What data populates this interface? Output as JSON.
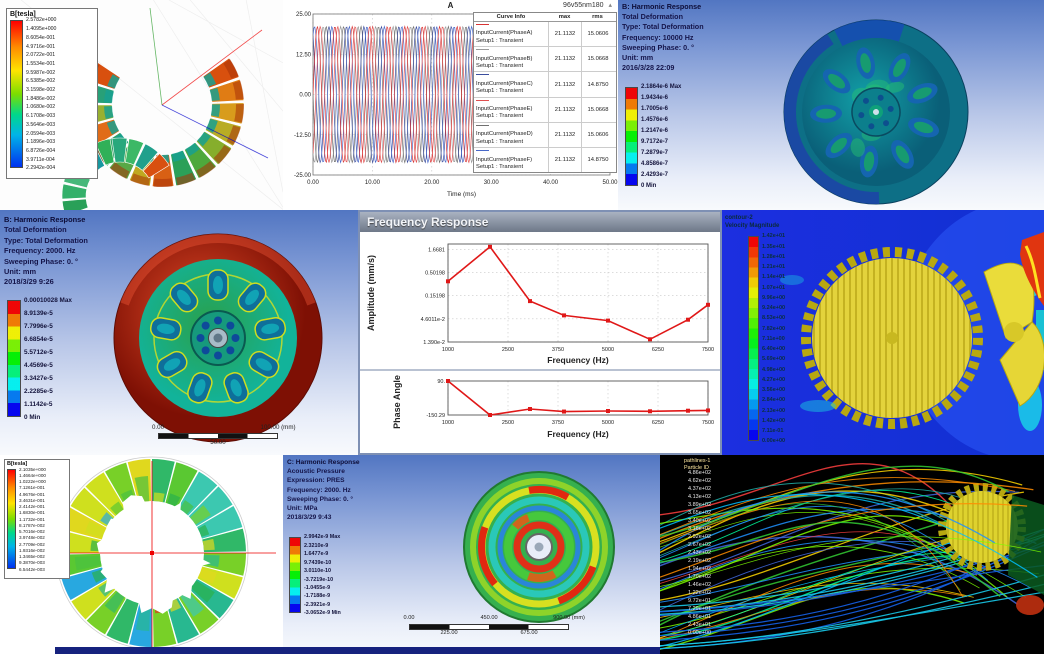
{
  "colors": {
    "plot_line_red": "#e01818",
    "ansys_header_text": "#15154a",
    "panel_titlebar": "#6e7888",
    "cfd_background": "#1c2fd8"
  },
  "tiles": {
    "maxwell_segment": {
      "legend_title": "B[tesla]",
      "legend_values": [
        "2.5782e+000",
        "1.4095e+000",
        "8.6054e-001",
        "4.9716e-001",
        "2.0722e-001",
        "1.5534e-001",
        "9.5987e-002",
        "6.5385e-002",
        "3.1598e-002",
        "1.8486e-002",
        "1.0680e-002",
        "6.1708e-003",
        "3.5646e-003",
        "2.0594e-003",
        "1.1896e-003",
        "6.8726e-004",
        "3.9711e-004",
        "2.2942e-004"
      ]
    },
    "harmonic_wheel_teal": {
      "header": [
        "B: Harmonic Response",
        "Total Deformation",
        "Type: Total Deformation",
        "Frequency: 10000 Hz",
        "Sweeping Phase: 0. °",
        "Unit: mm",
        "2016/3/28 22:09"
      ],
      "legend_values": [
        "2.1864e-6 Max",
        "1.9434e-6",
        "1.7005e-6",
        "1.4576e-6",
        "1.2147e-6",
        "9.7172e-7",
        "7.2879e-7",
        "4.8586e-7",
        "2.4293e-7",
        "0 Min"
      ]
    },
    "harmonic_wheel_red": {
      "header": [
        "B: Harmonic Response",
        "Total Deformation",
        "Type: Total Deformation",
        "Frequency: 2000. Hz",
        "Sweeping Phase: 0. °",
        "Unit: mm",
        "2018/3/29 9:26"
      ],
      "legend_values": [
        "0.00010028 Max",
        "8.9139e-5",
        "7.7996e-5",
        "6.6854e-5",
        "5.5712e-5",
        "4.4569e-5",
        "3.3427e-5",
        "2.2285e-5",
        "1.1142e-5",
        "0 Min"
      ],
      "scale_bar": {
        "left": "0.00",
        "right": "100.00 (mm)",
        "center": "50.00"
      }
    },
    "frequency_response": {
      "panel_title": "Frequency Response"
    },
    "cfd_velocity": {
      "legend_title_lines": [
        "contour-2",
        "Velocity Magnitude"
      ],
      "legend_values": [
        "1.42e+01",
        "1.35e+01",
        "1.28e+01",
        "1.21e+01",
        "1.14e+01",
        "1.07e+01",
        "9.96e+00",
        "9.24e+00",
        "8.53e+00",
        "7.82e+00",
        "7.11e+00",
        "6.40e+00",
        "5.69e+00",
        "4.98e+00",
        "4.27e+00",
        "3.56e+00",
        "2.84e+00",
        "2.13e+00",
        "1.42e+00",
        "7.11e-01",
        "0.00e+00"
      ]
    },
    "maxwell_ring": {
      "legend_title": "B[tesla]",
      "legend_values": [
        "2.1035e+000",
        "1.4664e+000",
        "1.0222e+000",
        "7.1261e-001",
        "4.9676e-001",
        "3.4631e-001",
        "2.4142e-001",
        "1.6830e-001",
        "1.1732e-001",
        "8.1787e-002",
        "5.7016e-002",
        "3.9748e-002",
        "2.7709e-002",
        "1.9316e-002",
        "1.3465e-002",
        "9.3870e-003",
        "6.5442e-003"
      ]
    },
    "acoustic_disk": {
      "header": [
        "C: Harmonic Response",
        "Acoustic Pressure",
        "Expression: PRES",
        "Frequency: 2000. Hz",
        "Sweeping Phase: 0. °",
        "Unit: MPa",
        "2018/3/29 9:43"
      ],
      "legend_values": [
        "2.9942e-9 Max",
        "2.3210e-9",
        "1.6477e-9",
        "9.7439e-10",
        "3.0110e-10",
        "-3.7219e-10",
        "-1.0455e-9",
        "-1.7188e-9",
        "-2.3921e-9",
        "-3.0652e-9 Min"
      ],
      "scale_bar": {
        "r1": [
          "0.00",
          "450.00",
          "900.00 (mm)"
        ],
        "r2": [
          "225.00",
          "675.00"
        ]
      }
    },
    "particle_traces": {
      "legend_title_lines": [
        "pathlines-1",
        "Particle ID"
      ],
      "legend_values": [
        "4.86e+02",
        "4.62e+02",
        "4.37e+02",
        "4.13e+02",
        "3.89e+02",
        "3.65e+02",
        "3.40e+02",
        "3.16e+02",
        "2.92e+02",
        "2.67e+02",
        "2.43e+02",
        "2.19e+02",
        "1.94e+02",
        "1.70e+02",
        "1.46e+02",
        "1.22e+02",
        "9.72e+01",
        "7.29e+01",
        "4.86e+01",
        "2.43e+01",
        "0.00e+00"
      ]
    }
  },
  "chart_data": [
    {
      "id": "input_current",
      "type": "line",
      "title": "A",
      "corner_label": "96v55nm180",
      "xlabel": "Time (ms)",
      "xlim": [
        0,
        50
      ],
      "ylim": [
        -25,
        25
      ],
      "xticks": [
        "0.00",
        "10.00",
        "20.00",
        "30.00",
        "40.00",
        "50.00"
      ],
      "xtick_values": [
        0,
        10,
        20,
        30,
        40,
        50
      ],
      "yticks": [
        "25.00",
        "12.50",
        "0.00",
        "-12.50",
        "-25.00"
      ],
      "ytick_values": [
        25,
        12.5,
        0,
        -12.5,
        -25
      ],
      "amplitude": 21.1132,
      "cycles_shown": 17,
      "legend_header": [
        "Curve Info",
        "max",
        "rms"
      ],
      "series": [
        {
          "name": "InputCurrent(PhaseA)",
          "setup": "Setup1 : Transient",
          "color": "#d83434",
          "phase_deg": 0,
          "max": "21.1132",
          "rms": "15.0606"
        },
        {
          "name": "InputCurrent(PhaseB)",
          "setup": "Setup1 : Transient",
          "color": "#9a9a9a",
          "phase_deg": -120,
          "max": "21.1132",
          "rms": "15.0668"
        },
        {
          "name": "InputCurrent(PhaseC)",
          "setup": "Setup1 : Transient",
          "color": "#3c4e9e",
          "phase_deg": -240,
          "max": "21.1132",
          "rms": "14.8750"
        },
        {
          "name": "InputCurrent(PhaseE)",
          "setup": "Setup1 : Transient",
          "color": "#e05050",
          "phase_deg": -60,
          "max": "21.1132",
          "rms": "15.0668"
        },
        {
          "name": "InputCurrent(PhaseD)",
          "setup": "Setup1 : Transient",
          "color": "#707070",
          "phase_deg": -180,
          "max": "21.1132",
          "rms": "15.0606"
        },
        {
          "name": "InputCurrent(PhaseF)",
          "setup": "Setup1 : Transient",
          "color": "#4868c8",
          "phase_deg": -300,
          "max": "21.1132",
          "rms": "14.8750"
        }
      ]
    },
    {
      "id": "amplitude_response",
      "type": "line",
      "xlabel": "Frequency (Hz)",
      "ylabel": "Amplitude (mm/s)",
      "yscale": "log",
      "x": [
        1000,
        2050,
        3050,
        3900,
        5000,
        6050,
        7000,
        7500
      ],
      "y": [
        0.32,
        1.9,
        0.115,
        0.055,
        0.042,
        0.016,
        0.044,
        0.095
      ],
      "xticks": [
        "1000",
        "2500",
        "3750",
        "5000",
        "6250",
        "7500"
      ],
      "xtick_values": [
        1000,
        2500,
        3750,
        5000,
        6250,
        7500
      ],
      "yticks": [
        "1.6681",
        "0.50198",
        "0.15198",
        "4.6011e-2",
        "1.390e-2"
      ],
      "ytick_values": [
        1.6681,
        0.50198,
        0.15198,
        0.046011,
        0.0139
      ],
      "xlim": [
        1000,
        7500
      ],
      "color": "#e01818",
      "grid": true,
      "legend": "none"
    },
    {
      "id": "phase_response",
      "type": "line",
      "xlabel": "Frequency (Hz)",
      "ylabel": "Phase Angle",
      "x": [
        1000,
        2050,
        3050,
        3900,
        5000,
        6050,
        7000,
        7500
      ],
      "y": [
        90,
        -150.29,
        -108,
        -126,
        -122,
        -124,
        -120,
        -118
      ],
      "xticks": [
        "1000",
        "2500",
        "3750",
        "5000",
        "6250",
        "7500"
      ],
      "xtick_values": [
        1000,
        2500,
        3750,
        5000,
        6250,
        7500
      ],
      "yticks": [
        "90.",
        "-150.29"
      ],
      "ytick_values": [
        90,
        -150.29
      ],
      "xlim": [
        1000,
        7500
      ],
      "ylim": [
        -150.29,
        90
      ],
      "color": "#e01818",
      "grid": true,
      "legend": "none"
    }
  ]
}
